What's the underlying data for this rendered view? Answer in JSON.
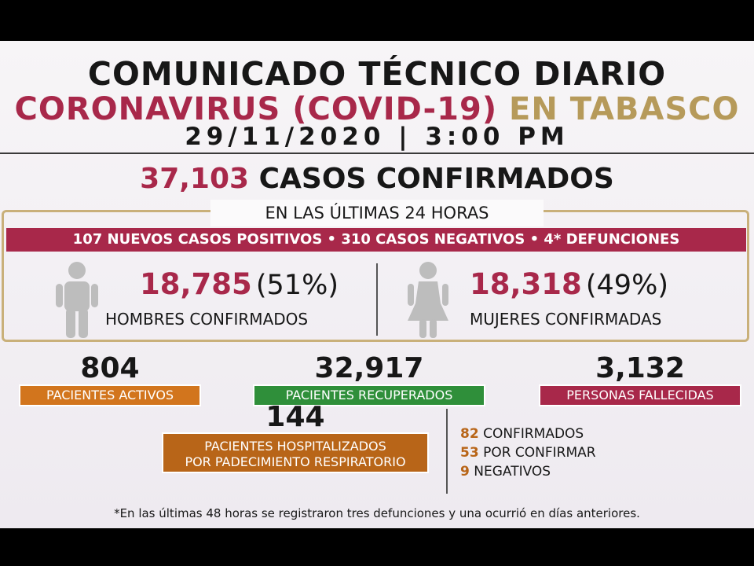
{
  "header": {
    "line1": "COMUNICADO TÉCNICO DIARIO",
    "line2_a": "CORONAVIRUS (COVID-19)",
    "line2_b": "EN TABASCO",
    "date_time": "29/11/2020 | 3:00 PM"
  },
  "totals": {
    "confirmed_value": "37,103",
    "confirmed_label": "CASOS CONFIRMADOS"
  },
  "last24": {
    "title": "EN LAS ÚLTIMAS 24 HORAS",
    "summary": "107 NUEVOS CASOS POSITIVOS • 310 CASOS NEGATIVOS • 4* DEFUNCIONES"
  },
  "gender": {
    "men_value": "18,785",
    "men_pct": "(51%)",
    "men_label": "HOMBRES CONFIRMADOS",
    "women_value": "18,318",
    "women_pct": "(49%)",
    "women_label": "MUJERES CONFIRMADAS"
  },
  "stats": {
    "active_value": "804",
    "active_label": "PACIENTES ACTIVOS",
    "recovered_value": "32,917",
    "recovered_label": "PACIENTES RECUPERADOS",
    "deceased_value": "3,132",
    "deceased_label": "PERSONAS FALLECIDAS"
  },
  "hospital": {
    "value": "144",
    "label_line1": "PACIENTES HOSPITALIZADOS",
    "label_line2": "POR PADECIMIENTO RESPIRATORIO",
    "rows": [
      {
        "n": "82",
        "text": "CONFIRMADOS"
      },
      {
        "n": "53",
        "text": "POR CONFIRMAR"
      },
      {
        "n": "9",
        "text": "NEGATIVOS"
      }
    ]
  },
  "footnote": "*En las últimas 48 horas se registraron tres defunciones y una ocurrió en días anteriores.",
  "colors": {
    "maroon": "#a8284a",
    "gold": "#b69a5a",
    "orange": "#d2751d",
    "green": "#2f8f3a",
    "hospital_orange": "#b86518"
  },
  "icons": [
    "man-icon",
    "woman-icon"
  ]
}
